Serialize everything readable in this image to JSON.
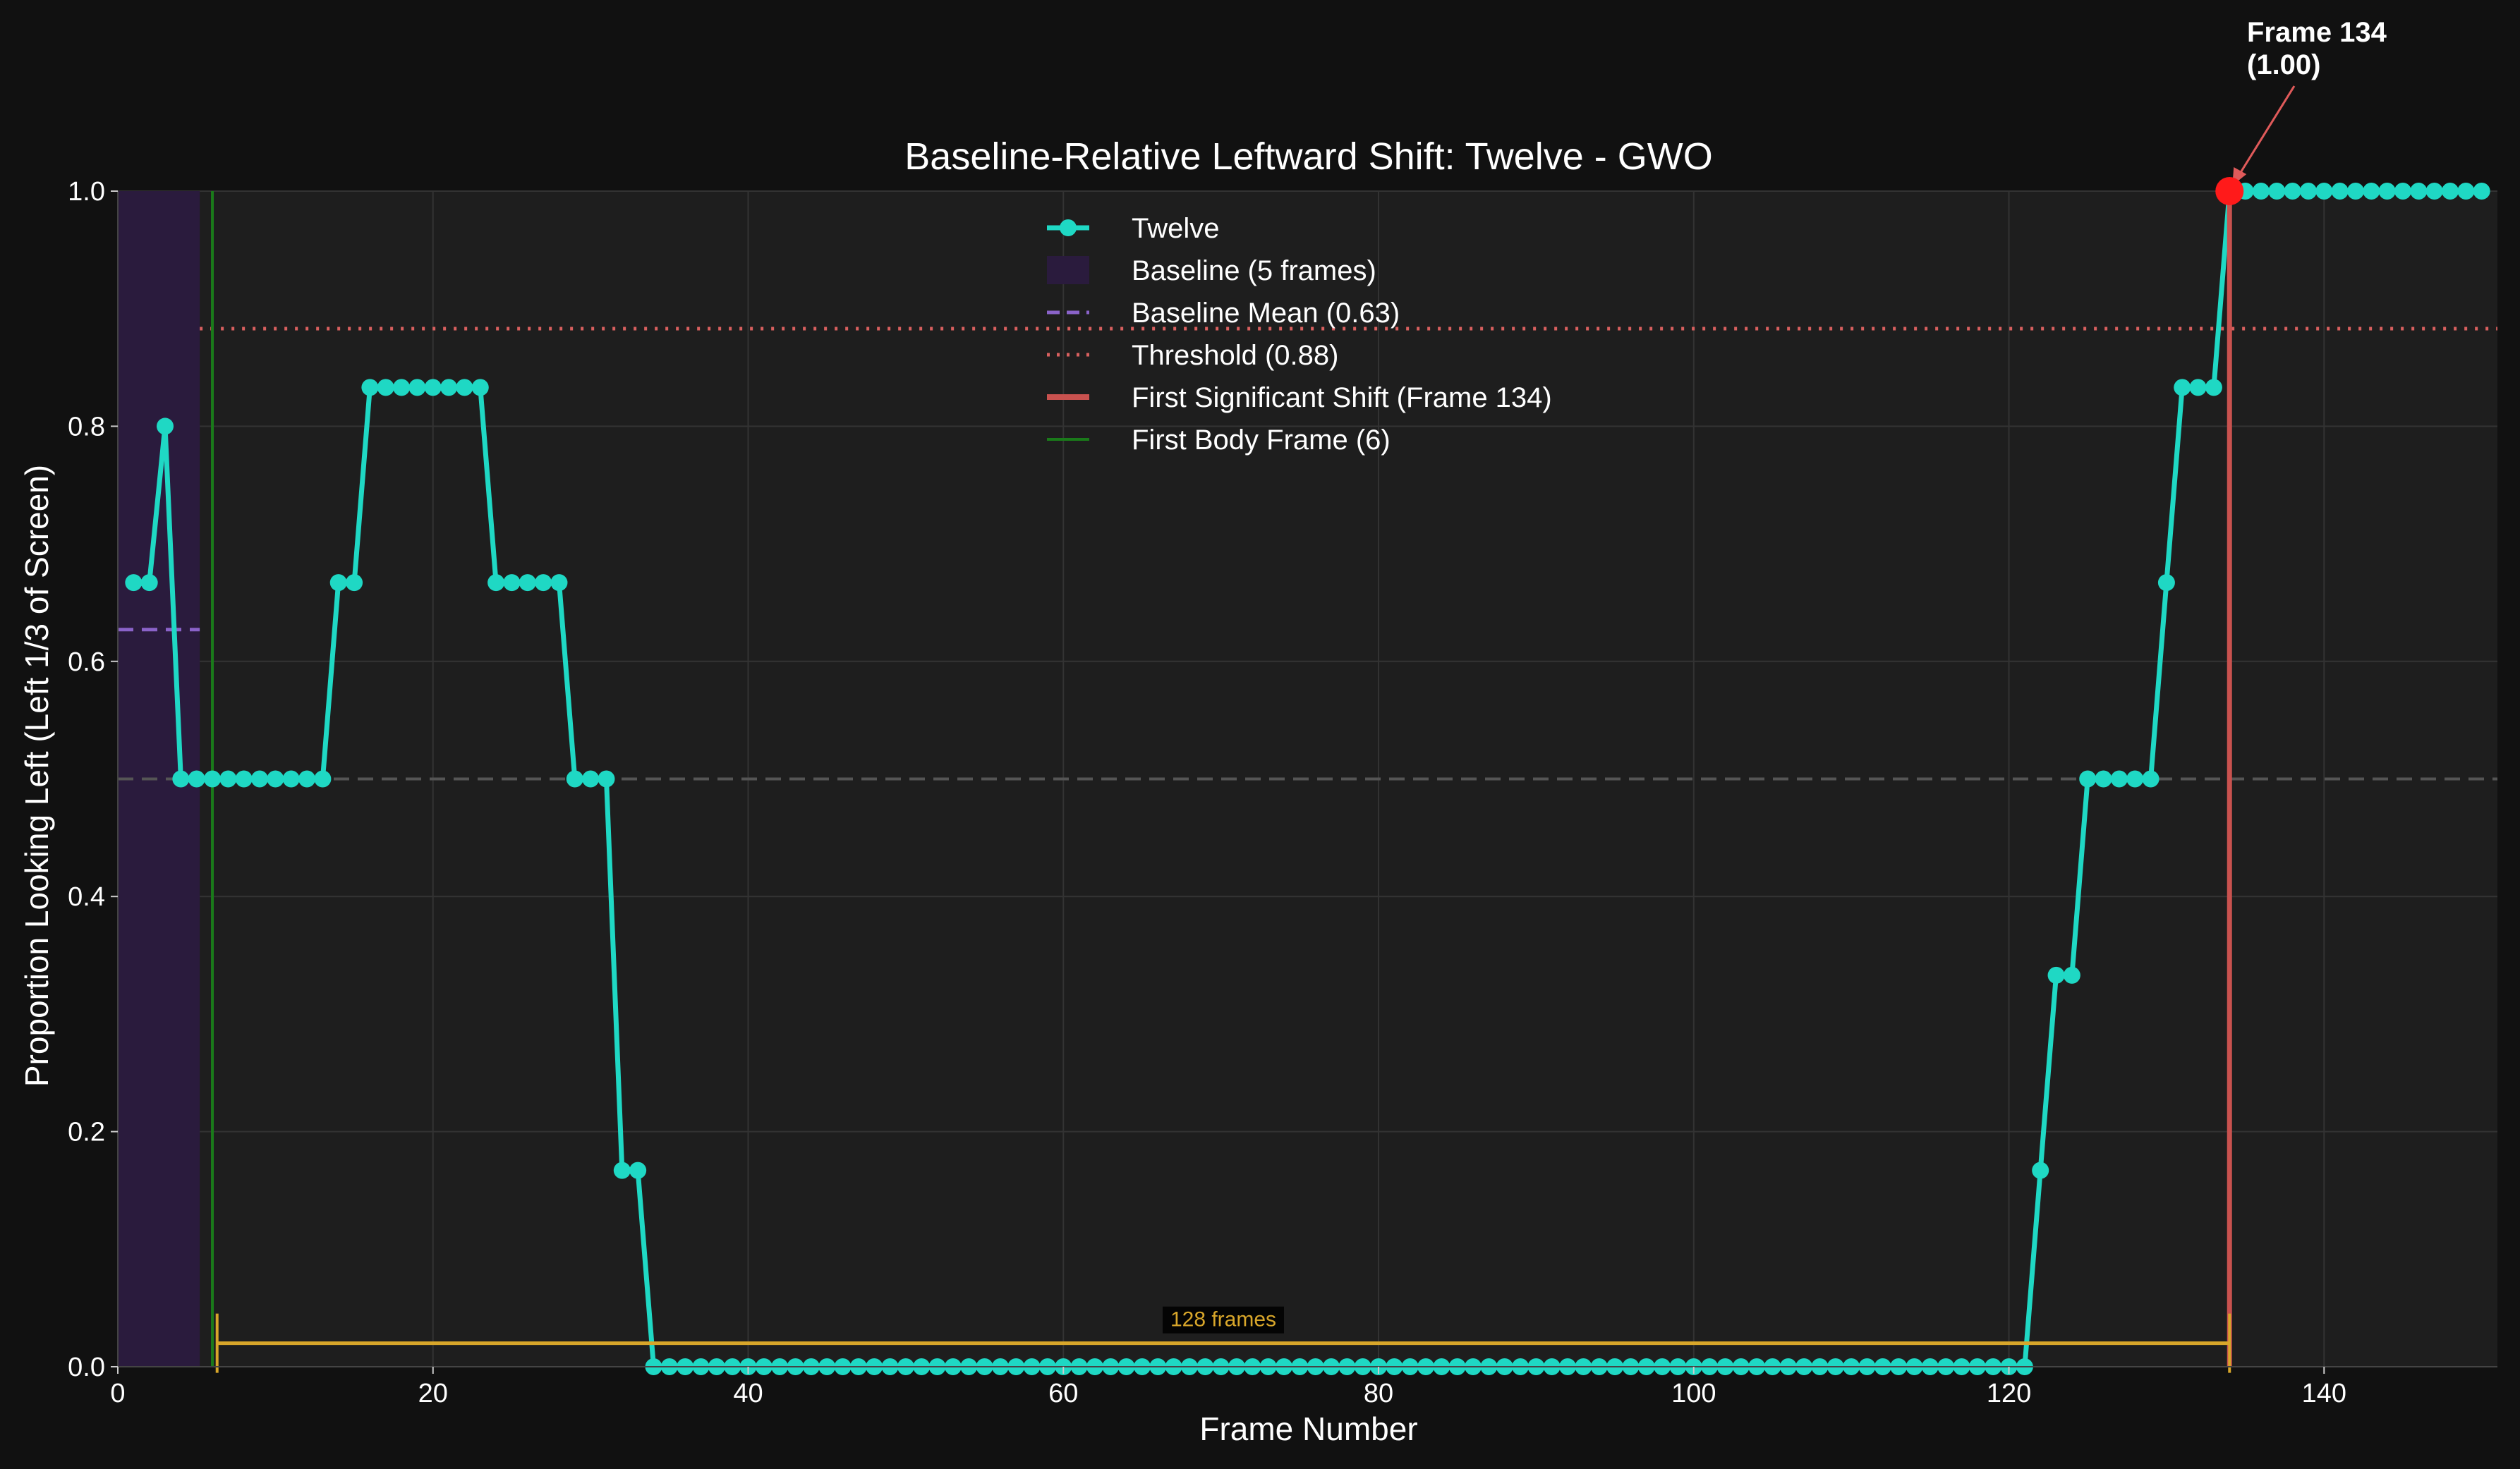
{
  "chart_data": {
    "type": "line",
    "title": "Baseline-Relative Leftward Shift: Twelve - GWO",
    "xlabel": "Frame Number",
    "ylabel": "Proportion Looking Left (Left 1/3 of Screen)",
    "xlim": [
      0,
      151
    ],
    "ylim": [
      0,
      1.0
    ],
    "x_ticks": [
      0,
      20,
      40,
      60,
      80,
      100,
      120,
      140
    ],
    "y_ticks": [
      0.0,
      0.2,
      0.4,
      0.6,
      0.8,
      1.0
    ],
    "x_tick_labels": [
      "0",
      "20",
      "40",
      "60",
      "80",
      "100",
      "120",
      "140"
    ],
    "y_tick_labels": [
      "0.0",
      "0.2",
      "0.4",
      "0.6",
      "0.8",
      "1.0"
    ],
    "grid": true,
    "legend_position": "top-center",
    "series": [
      {
        "name": "Twelve",
        "color": "#1fd8c4",
        "x": [
          1,
          2,
          3,
          4,
          5,
          6,
          7,
          8,
          9,
          10,
          11,
          12,
          13,
          14,
          15,
          16,
          17,
          18,
          19,
          20,
          21,
          22,
          23,
          24,
          25,
          26,
          27,
          28,
          29,
          30,
          31,
          32,
          33,
          34,
          35,
          36,
          37,
          38,
          39,
          40,
          41,
          42,
          43,
          44,
          45,
          46,
          47,
          48,
          49,
          50,
          51,
          52,
          53,
          54,
          55,
          56,
          57,
          58,
          59,
          60,
          61,
          62,
          63,
          64,
          65,
          66,
          67,
          68,
          69,
          70,
          71,
          72,
          73,
          74,
          75,
          76,
          77,
          78,
          79,
          80,
          81,
          82,
          83,
          84,
          85,
          86,
          87,
          88,
          89,
          90,
          91,
          92,
          93,
          94,
          95,
          96,
          97,
          98,
          99,
          100,
          101,
          102,
          103,
          104,
          105,
          106,
          107,
          108,
          109,
          110,
          111,
          112,
          113,
          114,
          115,
          116,
          117,
          118,
          119,
          120,
          121,
          122,
          123,
          124,
          125,
          126,
          127,
          128,
          129,
          130,
          131,
          132,
          133,
          134,
          135,
          136,
          137,
          138,
          139,
          140,
          141,
          142,
          143,
          144,
          145,
          146,
          147,
          148,
          149,
          150
        ],
        "y": [
          0.667,
          0.667,
          0.8,
          0.5,
          0.5,
          0.5,
          0.5,
          0.5,
          0.5,
          0.5,
          0.5,
          0.5,
          0.5,
          0.667,
          0.667,
          0.833,
          0.833,
          0.833,
          0.833,
          0.833,
          0.833,
          0.833,
          0.833,
          0.667,
          0.667,
          0.667,
          0.667,
          0.667,
          0.5,
          0.5,
          0.5,
          0.167,
          0.167,
          0,
          0,
          0,
          0,
          0,
          0,
          0,
          0,
          0,
          0,
          0,
          0,
          0,
          0,
          0,
          0,
          0,
          0,
          0,
          0,
          0,
          0,
          0,
          0,
          0,
          0,
          0,
          0,
          0,
          0,
          0,
          0,
          0,
          0,
          0,
          0,
          0,
          0,
          0,
          0,
          0,
          0,
          0,
          0,
          0,
          0,
          0,
          0,
          0,
          0,
          0,
          0,
          0,
          0,
          0,
          0,
          0,
          0,
          0,
          0,
          0,
          0,
          0,
          0,
          0,
          0,
          0,
          0,
          0,
          0,
          0,
          0,
          0,
          0,
          0,
          0,
          0,
          0,
          0,
          0,
          0,
          0,
          0,
          0,
          0,
          0,
          0,
          0,
          0.167,
          0.333,
          0.333,
          0.5,
          0.5,
          0.5,
          0.5,
          0.5,
          0.667,
          0.833,
          0.833,
          0.833,
          1,
          1,
          1,
          1,
          1,
          1,
          1,
          1,
          1,
          1,
          1,
          1,
          1,
          1,
          1,
          1,
          1
        ]
      }
    ],
    "legend": [
      {
        "label": "Twelve",
        "kind": "line-marker",
        "color": "#1fd8c4"
      },
      {
        "label": "Baseline (5 frames)",
        "kind": "patch",
        "color": "#2a1b3d"
      },
      {
        "label": "Baseline Mean (0.63)",
        "kind": "dashed",
        "color": "#8a63c9"
      },
      {
        "label": "Threshold (0.88)",
        "kind": "dotted",
        "color": "#d9605f"
      },
      {
        "label": "First Significant Shift (Frame 134)",
        "kind": "solid-thick",
        "color": "#c9524f"
      },
      {
        "label": "First Body Frame (6)",
        "kind": "solid",
        "color": "#1a7a1a"
      }
    ],
    "baseline_span": [
      0,
      5.2
    ],
    "baseline_mean": 0.627,
    "threshold": 0.883,
    "chance_level": 0.5,
    "first_shift_frame": 134,
    "first_body_frame": 6,
    "annotation": {
      "line1": "Frame 134",
      "line2": "(1.00)",
      "x": 134,
      "y": 1.0,
      "color": "#e05a5a",
      "marker_color": "#ff1a1a"
    },
    "bracket": {
      "label": "128 frames",
      "x_start": 6.3,
      "x_end": 134,
      "y": 0.02,
      "color": "#d8a62a"
    }
  }
}
